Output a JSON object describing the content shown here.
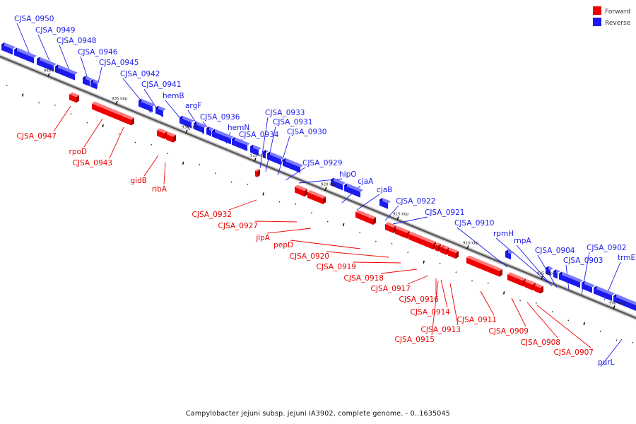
{
  "legend": [
    {
      "label": "Forward",
      "color": "#ee0000"
    },
    {
      "label": "Reverse",
      "color": "#1a1aee"
    }
  ],
  "caption": "Campylobacter jejuni subsp. jejuni IA3902, complete genome. - 0..1635045",
  "colors": {
    "forward": "#ee0000",
    "forward_light": "#ff7a7a",
    "forward_dark": "#a00000",
    "reverse": "#1a1aee",
    "reverse_light": "#7a7aff",
    "reverse_dark": "#0000a0",
    "backbone": "#888888"
  },
  "kbp_labels": [
    "940 kbp",
    "935 kbp",
    "930 kbp",
    "925 kbp",
    "920 kbp",
    "915 kbp",
    "910 kbp",
    "905 kbp",
    "900 kbp"
  ],
  "genes_reverse": [
    "CJSA_0950",
    "CJSA_0949",
    "CJSA_0948",
    "CJSA_0946",
    "CJSA_0945",
    "CJSA_0942",
    "CJSA_0941",
    "hemB",
    "argF",
    "CJSA_0936",
    "hemN",
    "CJSA_0934",
    "CJSA_0933",
    "CJSA_0931",
    "CJSA_0930",
    "CJSA_0929",
    "hipO",
    "cjaA",
    "cjaB",
    "CJSA_0922",
    "CJSA_0921",
    "CJSA_0910",
    "rpmH",
    "rnpA",
    "CJSA_0904",
    "CJSA_0903",
    "CJSA_0902",
    "trmE",
    "purL"
  ],
  "genes_forward": [
    "CJSA_0947",
    "rpoD",
    "CJSA_0943",
    "gidB",
    "ribA",
    "CJSA_0932",
    "CJSA_0927",
    "jlpA",
    "pepD",
    "CJSA_0920",
    "CJSA_0919",
    "CJSA_0918",
    "CJSA_0917",
    "CJSA_0916",
    "CJSA_0914",
    "CJSA_0913",
    "CJSA_0915",
    "CJSA_0911",
    "CJSA_0909",
    "CJSA_0908",
    "CJSA_0907"
  ]
}
